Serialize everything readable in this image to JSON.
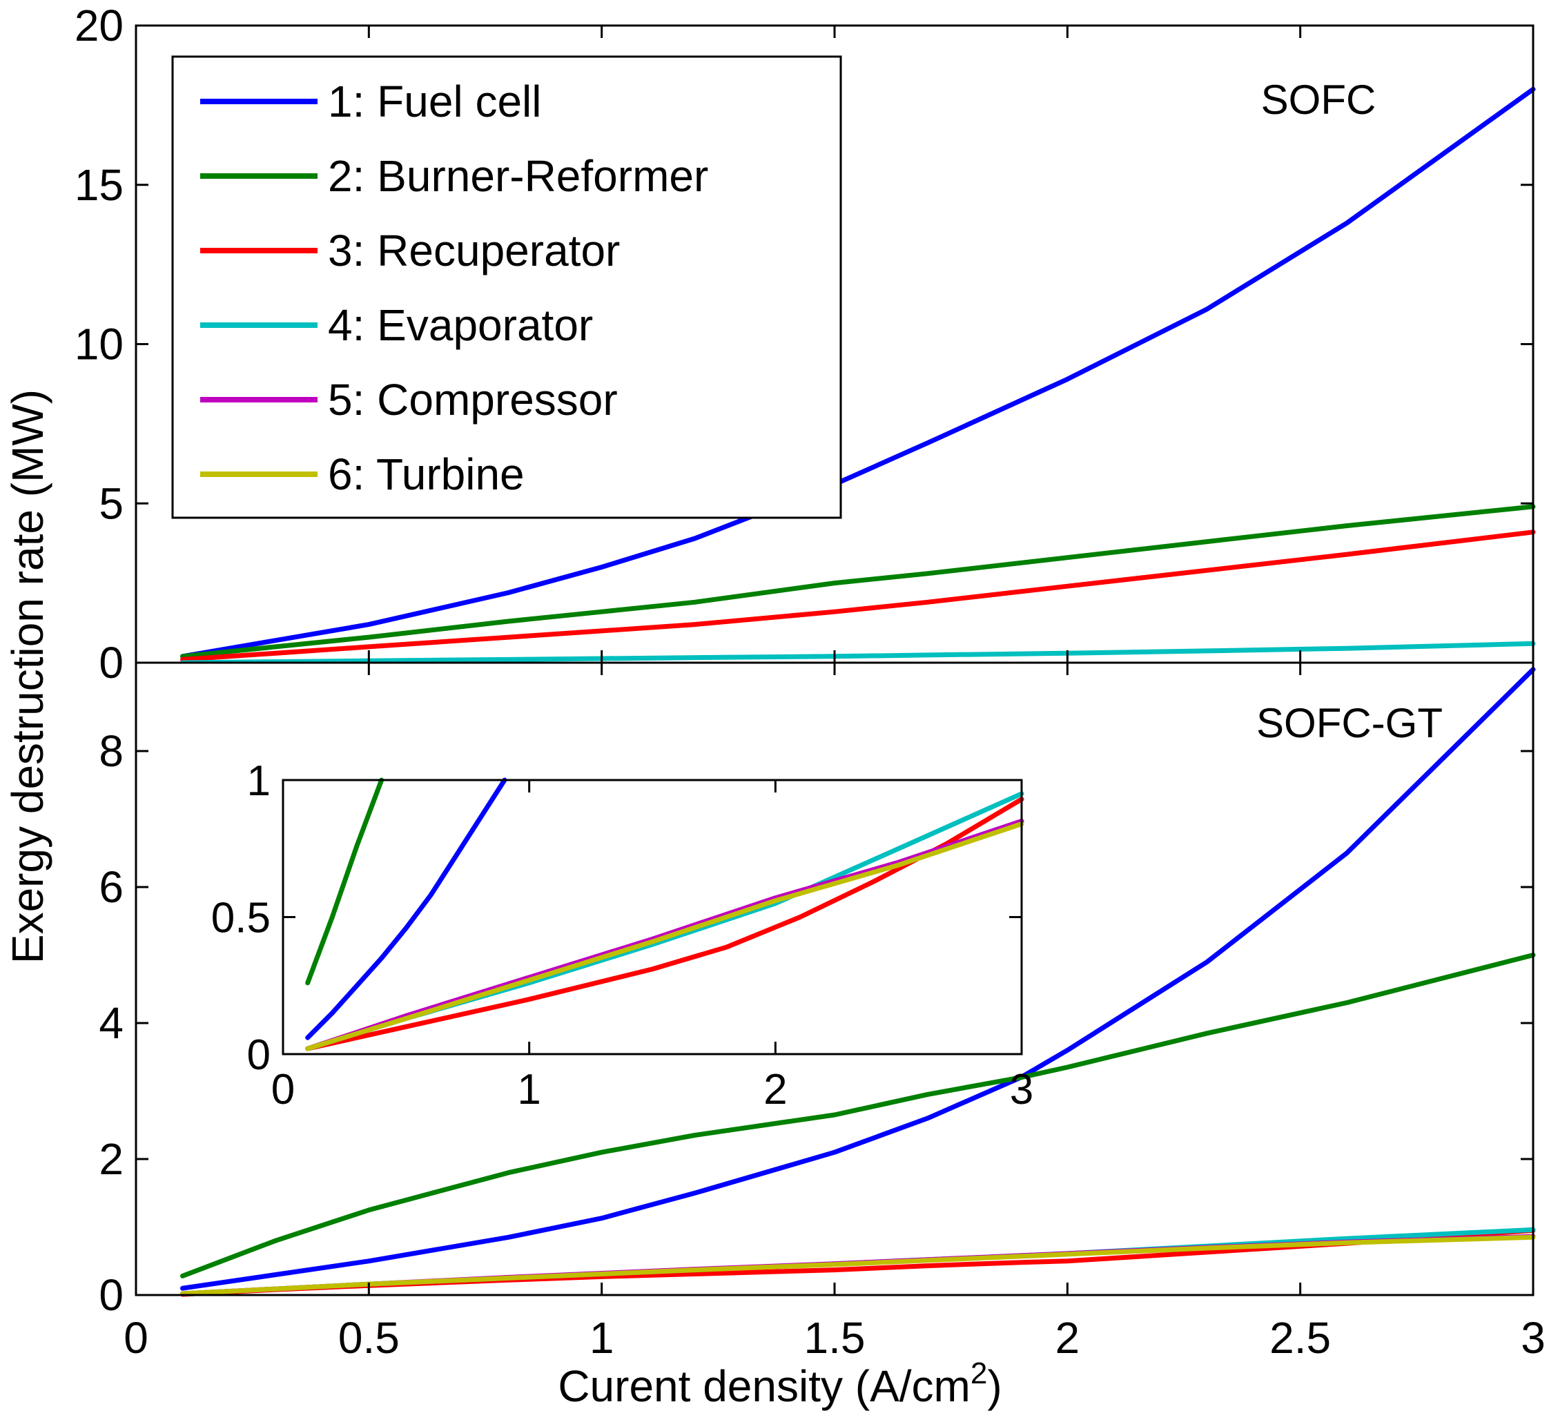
{
  "chart_data": [
    {
      "type": "line",
      "panel": "top",
      "annotation": "SOFC",
      "xlim": [
        0,
        3
      ],
      "ylim": [
        0,
        20
      ],
      "x_ticks": [
        "0",
        "0.5",
        "1",
        "1.5",
        "2",
        "2.5",
        "3"
      ],
      "y_ticks": [
        "0",
        "5",
        "10",
        "15",
        "20"
      ],
      "x": [
        0.1,
        0.3,
        0.5,
        0.8,
        1.0,
        1.2,
        1.5,
        1.7,
        2.0,
        2.3,
        2.6,
        3.0
      ],
      "series": [
        {
          "name": "1: Fuel cell",
          "color": "#0000ff",
          "values": [
            0.2,
            0.7,
            1.2,
            2.2,
            3.0,
            3.9,
            5.6,
            6.9,
            8.9,
            11.1,
            13.8,
            18.0
          ]
        },
        {
          "name": "2: Burner-Reformer",
          "color": "#008000",
          "values": [
            0.2,
            0.5,
            0.8,
            1.3,
            1.6,
            1.9,
            2.5,
            2.8,
            3.3,
            3.8,
            4.3,
            4.9
          ]
        },
        {
          "name": "3: Recuperator",
          "color": "#ff0000",
          "values": [
            0.1,
            0.3,
            0.5,
            0.8,
            1.0,
            1.2,
            1.6,
            1.9,
            2.4,
            2.9,
            3.4,
            4.1
          ]
        },
        {
          "name": "4: Evaporator",
          "color": "#00bfbf",
          "values": [
            0.0,
            0.03,
            0.06,
            0.1,
            0.13,
            0.16,
            0.2,
            0.24,
            0.3,
            0.37,
            0.45,
            0.6
          ]
        }
      ]
    },
    {
      "type": "line",
      "panel": "bottom",
      "annotation": "SOFC-GT",
      "xlabel": "Curent density (A/cm",
      "xlabel_superscript": "2",
      "xlabel_close": ")",
      "ylabel": "Exergy destruction rate (MW)",
      "xlim": [
        0,
        3
      ],
      "ylim": [
        0,
        9.3
      ],
      "x_ticks": [
        "0",
        "0.5",
        "1",
        "1.5",
        "2",
        "2.5",
        "3"
      ],
      "y_ticks": [
        "0",
        "2",
        "4",
        "6",
        "8"
      ],
      "x": [
        0.1,
        0.3,
        0.5,
        0.8,
        1.0,
        1.2,
        1.5,
        1.7,
        1.9,
        2.0,
        2.3,
        2.6,
        3.0
      ],
      "series": [
        {
          "name": "1: Fuel cell",
          "color": "#0000ff",
          "values": [
            0.1,
            0.3,
            0.5,
            0.85,
            1.13,
            1.5,
            2.1,
            2.6,
            3.2,
            3.6,
            4.9,
            6.5,
            9.2
          ]
        },
        {
          "name": "2: Burner-Reformer",
          "color": "#008000",
          "values": [
            0.28,
            0.8,
            1.25,
            1.8,
            2.1,
            2.35,
            2.65,
            2.95,
            3.2,
            3.35,
            3.85,
            4.3,
            5.0
          ]
        },
        {
          "name": "3: Recuperator",
          "color": "#ff0000",
          "values": [
            0.01,
            0.08,
            0.14,
            0.22,
            0.27,
            0.31,
            0.37,
            0.43,
            0.48,
            0.5,
            0.63,
            0.76,
            0.95
          ]
        },
        {
          "name": "4: Evaporator",
          "color": "#00bfbf",
          "values": [
            0.02,
            0.09,
            0.16,
            0.25,
            0.31,
            0.37,
            0.46,
            0.52,
            0.58,
            0.61,
            0.72,
            0.83,
            0.96
          ]
        },
        {
          "name": "5: Compressor",
          "color": "#bf00bf",
          "values": [
            0.02,
            0.09,
            0.16,
            0.26,
            0.32,
            0.38,
            0.46,
            0.52,
            0.58,
            0.61,
            0.7,
            0.78,
            0.86
          ]
        },
        {
          "name": "6: Turbine",
          "color": "#bfbf00",
          "values": [
            0.02,
            0.09,
            0.16,
            0.25,
            0.31,
            0.37,
            0.45,
            0.51,
            0.57,
            0.6,
            0.69,
            0.77,
            0.85
          ]
        }
      ]
    },
    {
      "type": "line",
      "panel": "inset",
      "xlim": [
        0,
        3
      ],
      "ylim": [
        0,
        1
      ],
      "x_ticks": [
        "0",
        "1",
        "2",
        "3"
      ],
      "y_ticks": [
        "0",
        "0.5",
        "1"
      ],
      "series": [
        {
          "name": "1: Fuel cell",
          "color": "#0000ff",
          "x": [
            0.1,
            0.2,
            0.3,
            0.4,
            0.5,
            0.6,
            0.7,
            0.8,
            0.9
          ],
          "values": [
            0.06,
            0.15,
            0.25,
            0.35,
            0.46,
            0.58,
            0.72,
            0.86,
            1.0
          ]
        },
        {
          "name": "2: Burner-Reformer",
          "color": "#008000",
          "x": [
            0.1,
            0.2,
            0.3,
            0.4
          ],
          "values": [
            0.26,
            0.5,
            0.76,
            1.0
          ]
        },
        {
          "name": "3: Recuperator",
          "color": "#ff0000",
          "x": [
            0.1,
            0.5,
            1.0,
            1.5,
            1.8,
            2.1,
            2.4,
            2.7,
            3.0
          ],
          "values": [
            0.02,
            0.1,
            0.2,
            0.31,
            0.39,
            0.5,
            0.63,
            0.77,
            0.93
          ]
        },
        {
          "name": "4: Evaporator",
          "color": "#00bfbf",
          "x": [
            0.1,
            0.5,
            1.0,
            1.5,
            2.0,
            2.5,
            3.0
          ],
          "values": [
            0.02,
            0.13,
            0.26,
            0.4,
            0.55,
            0.75,
            0.95
          ]
        },
        {
          "name": "5: Compressor",
          "color": "#bf00bf",
          "x": [
            0.1,
            0.5,
            1.0,
            1.5,
            2.0,
            2.5,
            3.0
          ],
          "values": [
            0.02,
            0.14,
            0.28,
            0.42,
            0.57,
            0.7,
            0.85
          ]
        },
        {
          "name": "6: Turbine",
          "color": "#bfbf00",
          "x": [
            0.1,
            0.5,
            1.0,
            1.5,
            2.0,
            2.5,
            3.0
          ],
          "values": [
            0.02,
            0.13,
            0.27,
            0.41,
            0.56,
            0.69,
            0.84
          ]
        }
      ]
    }
  ],
  "legend": {
    "entries": [
      {
        "label": "1: Fuel cell",
        "color": "#0000ff"
      },
      {
        "label": "2: Burner-Reformer",
        "color": "#008000"
      },
      {
        "label": "3: Recuperator",
        "color": "#ff0000"
      },
      {
        "label": "4: Evaporator",
        "color": "#00bfbf"
      },
      {
        "label": "5: Compressor",
        "color": "#bf00bf"
      },
      {
        "label": "6: Turbine",
        "color": "#bfbf00"
      }
    ]
  }
}
